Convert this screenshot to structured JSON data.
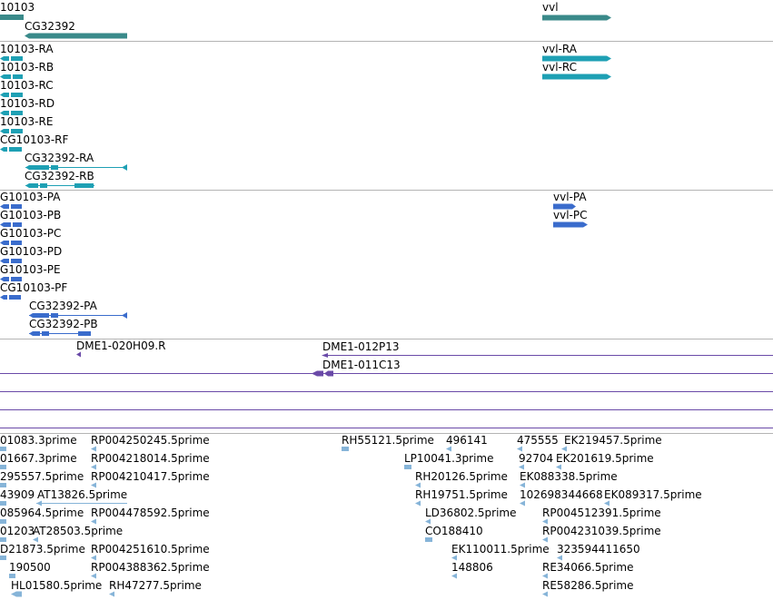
{
  "tracks": {
    "genes": {
      "features": [
        {
          "label": "10103"
        },
        {
          "label": "CG32392"
        },
        {
          "label": "vvl"
        }
      ]
    },
    "transcripts": {
      "features": [
        {
          "label": "10103-RA"
        },
        {
          "label": "10103-RB"
        },
        {
          "label": "10103-RC"
        },
        {
          "label": "10103-RD"
        },
        {
          "label": "10103-RE"
        },
        {
          "label": "CG10103-RF"
        },
        {
          "label": "CG32392-RA"
        },
        {
          "label": "CG32392-RB"
        },
        {
          "label": "vvl-RA"
        },
        {
          "label": "vvl-RC"
        }
      ]
    },
    "proteins": {
      "features": [
        {
          "label": "G10103-PA"
        },
        {
          "label": "G10103-PB"
        },
        {
          "label": "G10103-PC"
        },
        {
          "label": "G10103-PD"
        },
        {
          "label": "G10103-PE"
        },
        {
          "label": "CG10103-PF"
        },
        {
          "label": "CG32392-PA"
        },
        {
          "label": "CG32392-PB"
        },
        {
          "label": "vvl-PA"
        },
        {
          "label": "vvl-PC"
        }
      ]
    },
    "clones": {
      "features": [
        {
          "label": "DME1-020H09.R"
        },
        {
          "label": "DME1-012P13"
        },
        {
          "label": "DME1-011C13"
        }
      ]
    },
    "ests": {
      "features": [
        {
          "label": "01083.3prime"
        },
        {
          "label": "RP004250245.5prime"
        },
        {
          "label": "RH55121.5prime"
        },
        {
          "label": "496141"
        },
        {
          "label": "475555"
        },
        {
          "label": "EK219457.5prime"
        },
        {
          "label": "01667.3prime"
        },
        {
          "label": "RP004218014.5prime"
        },
        {
          "label": "LP10041.3prime"
        },
        {
          "label": "92704"
        },
        {
          "label": "EK201619.5prime"
        },
        {
          "label": "295557.5prime"
        },
        {
          "label": "RP004210417.5prime"
        },
        {
          "label": "RH20126.5prime"
        },
        {
          "label": "EK088338.5prime"
        },
        {
          "label": "43909"
        },
        {
          "label": "AT13826.5prime"
        },
        {
          "label": "RH19751.5prime"
        },
        {
          "label": "102698344668"
        },
        {
          "label": "EK089317.5prime"
        },
        {
          "label": "085964.5prime"
        },
        {
          "label": "RP004478592.5prime"
        },
        {
          "label": "LD36802.5prime"
        },
        {
          "label": "RP004512391.5prime"
        },
        {
          "label": "01203"
        },
        {
          "label": "AT28503.5prime"
        },
        {
          "label": "CO188410"
        },
        {
          "label": "RP004231039.5prime"
        },
        {
          "label": "D21873.5prime"
        },
        {
          "label": "RP004251610.5prime"
        },
        {
          "label": "EK110011.5prime"
        },
        {
          "label": "323594411650"
        },
        {
          "label": "190500"
        },
        {
          "label": "RP004388362.5prime"
        },
        {
          "label": "148806"
        },
        {
          "label": "RE34066.5prime"
        },
        {
          "label": "HL01580.5prime"
        },
        {
          "label": "RH47277.5prime"
        },
        {
          "label": "RE58286.5prime"
        }
      ]
    }
  },
  "colors": {
    "gene": "#3a8a8a",
    "transcript": "#1ea0b4",
    "protein": "#3a6ccc",
    "clone": "#6a4aa8",
    "est": "#86b4d8",
    "separator": "#b4b4b4"
  }
}
